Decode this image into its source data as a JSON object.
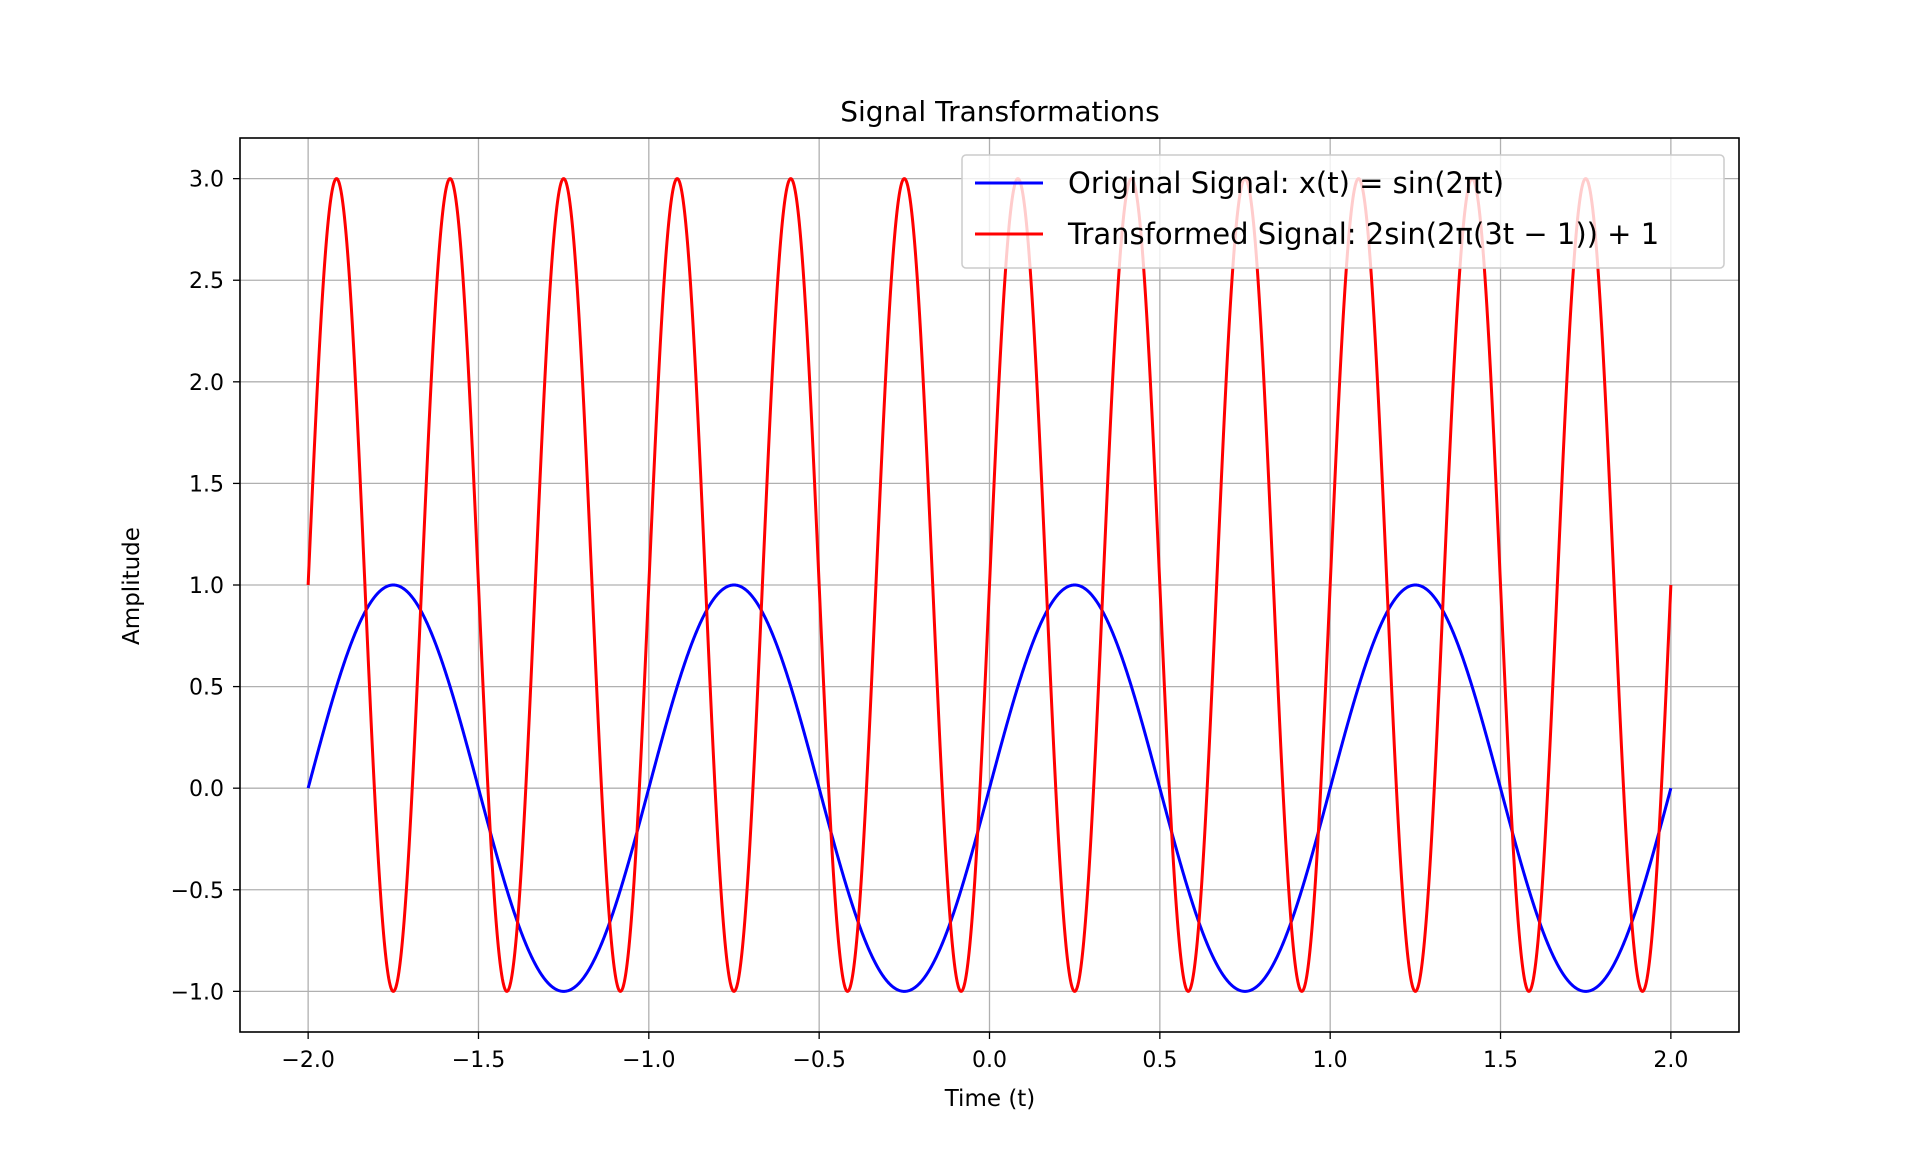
{
  "chart_data": {
    "type": "line",
    "title": "Signal Transformations",
    "xlabel": "Time (t)",
    "ylabel": "Amplitude",
    "xlim": [
      -2.2,
      2.2
    ],
    "ylim": [
      -1.2,
      3.2
    ],
    "xticks": [
      -2.0,
      -1.5,
      -1.0,
      -0.5,
      0.0,
      0.5,
      1.0,
      1.5,
      2.0
    ],
    "xtick_labels": [
      "−2.0",
      "−1.5",
      "−1.0",
      "−0.5",
      "0.0",
      "0.5",
      "1.0",
      "1.5",
      "2.0"
    ],
    "yticks": [
      -1.0,
      -0.5,
      0.0,
      0.5,
      1.0,
      1.5,
      2.0,
      2.5,
      3.0
    ],
    "ytick_labels": [
      "−1.0",
      "−0.5",
      "0.0",
      "0.5",
      "1.0",
      "1.5",
      "2.0",
      "2.5",
      "3.0"
    ],
    "grid": true,
    "legend_position": "top-right",
    "x_domain": [
      -2.0,
      2.0
    ],
    "series": [
      {
        "name": "Original Signal: x(t) = sin(2πt)",
        "function": "sin(2πt)",
        "amplitude": 1,
        "frequency": 1,
        "shift": 0,
        "offset": 0,
        "color": "#0000ff"
      },
      {
        "name": "Transformed Signal: 2sin(2π(3t − 1)) + 1",
        "function": "2sin(2π(3t − 1)) + 1",
        "amplitude": 2,
        "frequency": 3,
        "shift": 1,
        "offset": 1,
        "color": "#ff0000"
      }
    ]
  }
}
